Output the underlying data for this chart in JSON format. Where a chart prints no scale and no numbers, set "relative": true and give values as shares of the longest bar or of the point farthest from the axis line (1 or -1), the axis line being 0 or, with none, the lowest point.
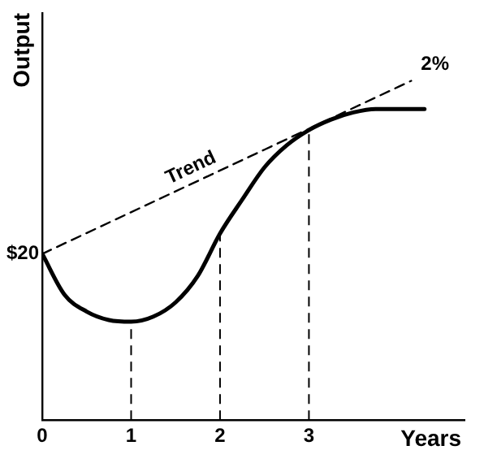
{
  "chart_data": {
    "type": "line",
    "xlabel": "Years",
    "ylabel": "Output",
    "relative": true,
    "xlim": [
      0,
      4.75
    ],
    "xticks": [
      0,
      1,
      2,
      3
    ],
    "series": [
      {
        "color": "#000000",
        "line_style": "solid",
        "x": [
          0,
          0.25,
          0.5,
          0.75,
          1,
          1.25,
          1.5,
          1.75,
          2,
          2.25,
          2.5,
          2.75,
          3,
          3.25,
          3.5,
          3.75,
          4.3
        ],
        "values": [
          0.49,
          0.37,
          0.32,
          0.295,
          0.29,
          0.305,
          0.347,
          0.425,
          0.55,
          0.65,
          0.745,
          0.81,
          0.855,
          0.886,
          0.907,
          0.917,
          0.917
        ]
      },
      {
        "name": "Trend",
        "color": "#000000",
        "line_style": "dashed",
        "x": [
          0,
          4.15
        ],
        "values": [
          0.49,
          1
        ]
      }
    ],
    "ref_lines": [
      {
        "axis": "x",
        "value": 1,
        "line_style": "dashed"
      },
      {
        "axis": "x",
        "value": 2,
        "line_style": "dashed"
      },
      {
        "axis": "x",
        "value": 3,
        "line_style": "dashed"
      }
    ],
    "annotations": [
      {
        "text": "$20",
        "x": 0,
        "y": 0.49
      },
      {
        "text": "2%",
        "x": 4.15,
        "y": 1
      }
    ],
    "grid": false,
    "legend": false,
    "marker": "none"
  }
}
